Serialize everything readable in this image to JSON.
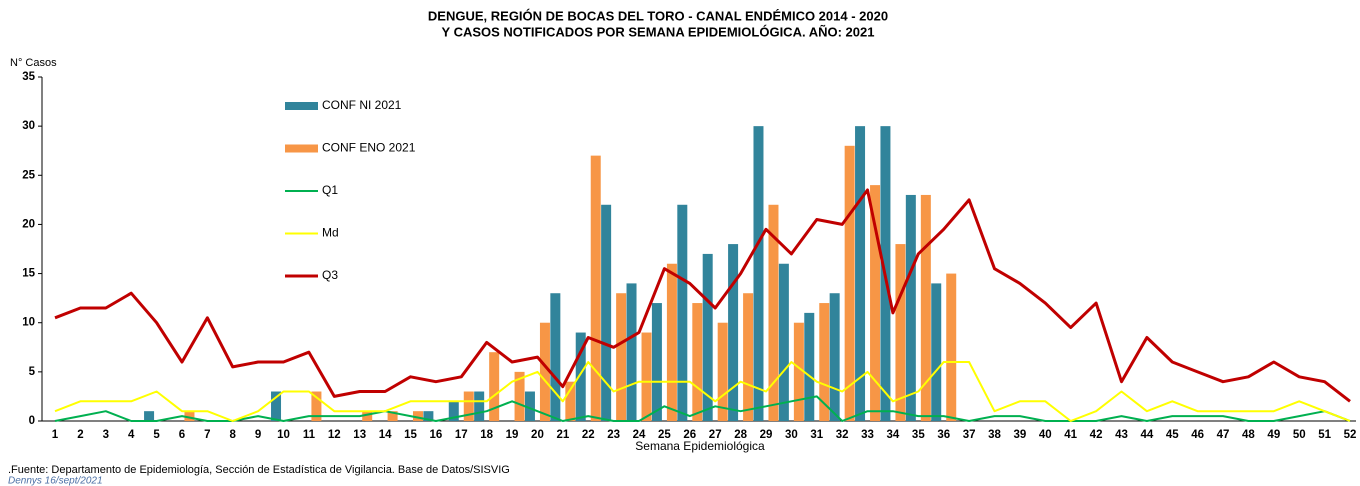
{
  "chart_data": {
    "type": "bar_line",
    "title": [
      "DENGUE, REGIÓN DE BOCAS DEL TORO - CANAL ENDÉMICO 2014 - 2020",
      "Y CASOS NOTIFICADOS POR SEMANA EPIDEMIOLÓGICA. AÑO: 2021"
    ],
    "y_label": "N° Casos",
    "x_label": "Semana Epidemiológica",
    "source": ".Fuente: Departamento de Epidemiología, Sección de Estadística de Vigilancia. Base de Datos/SISVIG",
    "author": "Dennys  16/sept/2021",
    "categories": [
      "1",
      "2",
      "3",
      "4",
      "5",
      "6",
      "7",
      "8",
      "9",
      "10",
      "11",
      "12",
      "13",
      "14",
      "15",
      "16",
      "17",
      "18",
      "19",
      "20",
      "21",
      "22",
      "23",
      "24",
      "25",
      "26",
      "27",
      "28",
      "29",
      "30",
      "31",
      "32",
      "33",
      "34",
      "35",
      "36",
      "37",
      "38",
      "39",
      "40",
      "41",
      "42",
      "43",
      "44",
      "45",
      "46",
      "47",
      "48",
      "49",
      "50",
      "51",
      "52"
    ],
    "ylim": [
      0,
      35
    ],
    "yticks": [
      0,
      5,
      10,
      15,
      20,
      25,
      30,
      35
    ],
    "series": [
      {
        "name": "CONF NI 2021",
        "kind": "bar",
        "color": "#31849b",
        "values": [
          0,
          0,
          0,
          0,
          1,
          0,
          0,
          0,
          0,
          3,
          0,
          0,
          0,
          0,
          0,
          1,
          2,
          3,
          0,
          3,
          13,
          9,
          22,
          14,
          12,
          22,
          17,
          18,
          30,
          16,
          11,
          13,
          30,
          30,
          23,
          14,
          null,
          null,
          null,
          null,
          null,
          null,
          null,
          null,
          null,
          null,
          null,
          null,
          null,
          null,
          null,
          null
        ]
      },
      {
        "name": "CONF ENO 2021",
        "kind": "bar",
        "color": "#f79646",
        "values": [
          0,
          0,
          0,
          0,
          0,
          1,
          0,
          0,
          0,
          0,
          3,
          0,
          1,
          1,
          1,
          0,
          3,
          7,
          5,
          10,
          4,
          27,
          13,
          9,
          16,
          12,
          10,
          13,
          22,
          10,
          12,
          28,
          24,
          18,
          23,
          15,
          null,
          null,
          null,
          null,
          null,
          null,
          null,
          null,
          null,
          null,
          null,
          null,
          null,
          null,
          null,
          null
        ]
      },
      {
        "name": "Q1",
        "kind": "line",
        "color": "#00b050",
        "values": [
          0,
          0.5,
          1,
          0,
          0,
          0.5,
          0,
          0,
          0.5,
          0,
          0.5,
          0.5,
          0.5,
          1,
          0.5,
          0,
          0.5,
          1,
          2,
          1,
          0,
          0.5,
          0,
          0,
          1.5,
          0.5,
          1.5,
          1,
          1.5,
          2,
          2.5,
          0,
          1,
          1,
          0.5,
          0.5,
          0,
          0.5,
          0.5,
          0,
          0,
          0,
          0.5,
          0,
          0.5,
          0.5,
          0.5,
          0,
          0,
          0.5,
          1,
          0
        ]
      },
      {
        "name": "Md",
        "kind": "line",
        "color": "#ffff00",
        "values": [
          1,
          2,
          2,
          2,
          3,
          1,
          1,
          0,
          1,
          3,
          3,
          1,
          1,
          1,
          2,
          2,
          2,
          2,
          4,
          5,
          2,
          6,
          3,
          4,
          4,
          4,
          2,
          4,
          3,
          6,
          4,
          3,
          5,
          2,
          3,
          6,
          6,
          1,
          2,
          2,
          0,
          1,
          3,
          1,
          2,
          1,
          1,
          1,
          1,
          2,
          1,
          0
        ]
      },
      {
        "name": "Q3",
        "kind": "line",
        "color": "#c00000",
        "values": [
          10.5,
          11.5,
          11.5,
          13,
          10,
          6,
          10.5,
          5.5,
          6,
          6,
          7,
          2.5,
          3,
          3,
          4.5,
          4,
          4.5,
          8,
          6,
          6.5,
          3.5,
          8.5,
          7.5,
          9,
          15.5,
          14,
          11.5,
          15,
          19.5,
          17,
          20.5,
          20,
          23.5,
          11,
          17,
          19.5,
          22.5,
          15.5,
          14,
          12,
          9.5,
          12,
          4,
          8.5,
          6,
          5,
          4,
          4.5,
          6,
          4.5,
          4,
          2
        ]
      }
    ]
  }
}
